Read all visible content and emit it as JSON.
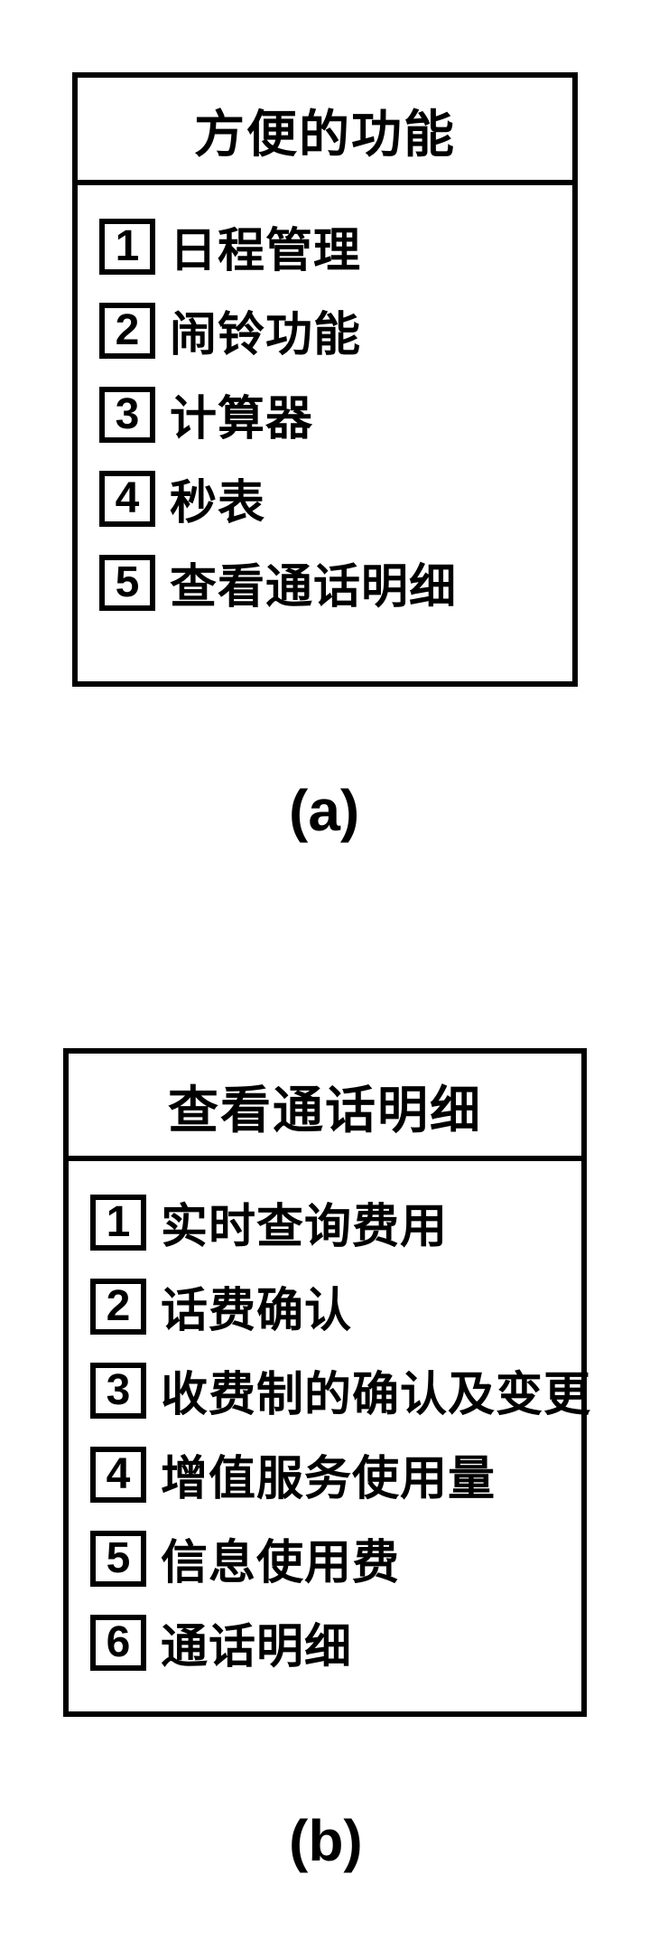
{
  "figure": {
    "a": {
      "title": "方便的功能",
      "caption": "(a)",
      "items": [
        {
          "num": "1",
          "label": "日程管理"
        },
        {
          "num": "2",
          "label": "闹铃功能"
        },
        {
          "num": "3",
          "label": "计算器"
        },
        {
          "num": "4",
          "label": "秒表"
        },
        {
          "num": "5",
          "label": "查看通话明细"
        }
      ]
    },
    "b": {
      "title": "查看通话明细",
      "caption": "(b)",
      "items": [
        {
          "num": "1",
          "label": "实时查询费用"
        },
        {
          "num": "2",
          "label": "话费确认"
        },
        {
          "num": "3",
          "label": "收费制的确认及变更"
        },
        {
          "num": "4",
          "label": "增值服务使用量"
        },
        {
          "num": "5",
          "label": "信息使用费"
        },
        {
          "num": "6",
          "label": "通话明细"
        }
      ]
    }
  },
  "colors": {
    "border": "#000000",
    "background": "#ffffff",
    "text": "#000000"
  }
}
